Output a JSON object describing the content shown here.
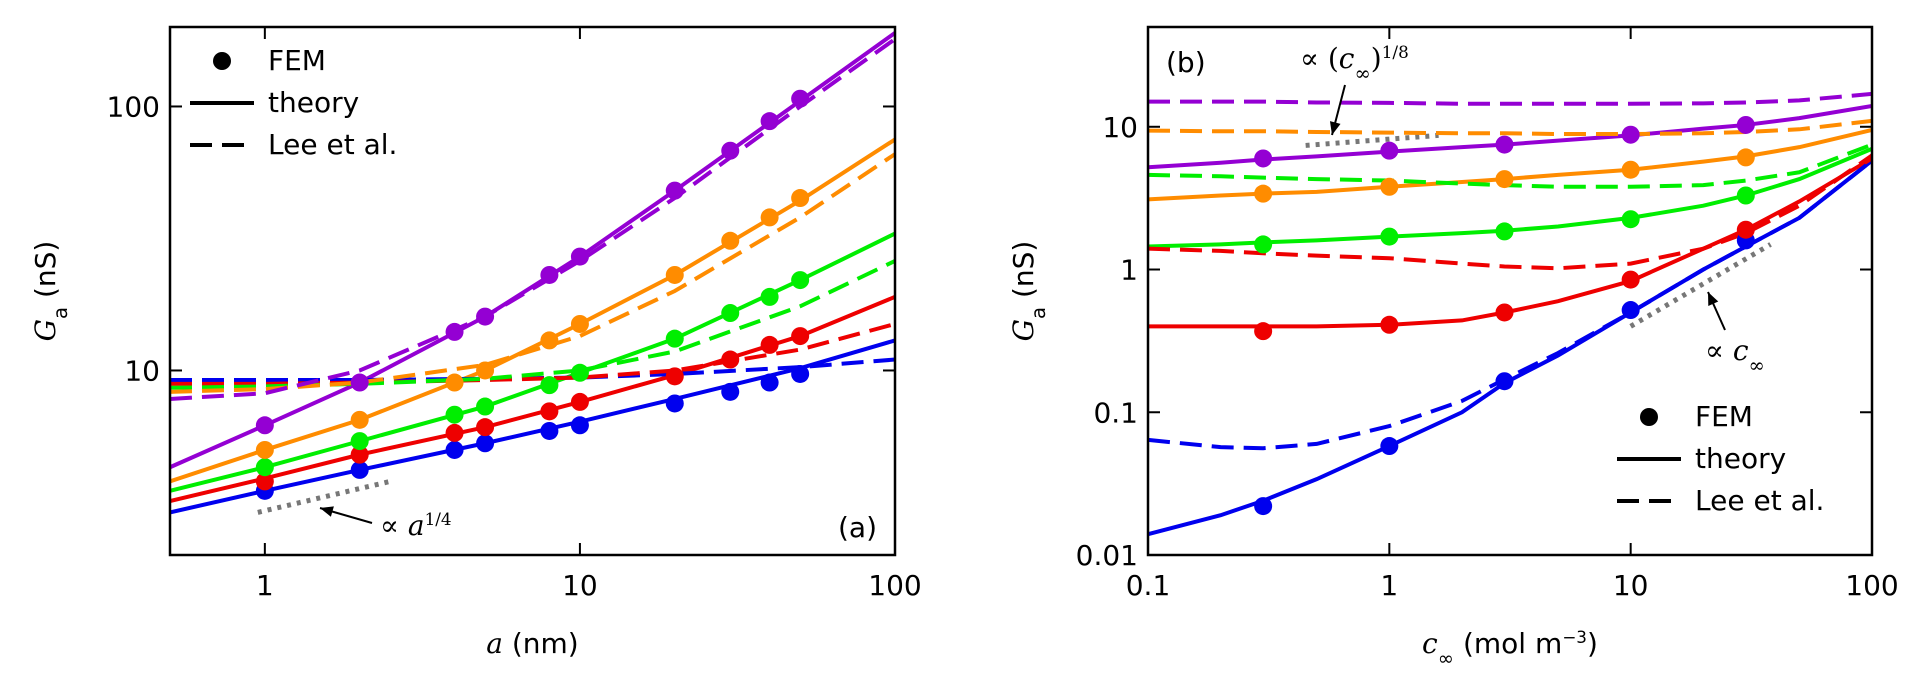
{
  "chart_data": [
    {
      "type": "line",
      "log_x": true,
      "log_y": true,
      "xlabel": [
        {
          "text": "a",
          "style": "italic"
        },
        {
          "text": " (nm)",
          "style": "normal"
        }
      ],
      "ylabel": [
        {
          "text": "G",
          "style": "italic"
        },
        {
          "text": "a",
          "style": "sub"
        },
        {
          "text": " (nS)",
          "style": "normal"
        }
      ],
      "xlim": [
        0.5,
        100
      ],
      "xticks": [
        1,
        10,
        100
      ],
      "ylim": [
        2,
        200
      ],
      "yticks": [
        10,
        100
      ],
      "legend": "upper left",
      "panel_label": "(a)",
      "panel_label_loc": "lower right",
      "series": [
        {
          "name": "FEM",
          "style": "points",
          "x": [
            1,
            2,
            4,
            5,
            8,
            10,
            20,
            30,
            40,
            50
          ],
          "curves": [
            {
              "color": "#0000ee",
              "values": [
                3.5,
                4.2,
                5,
                5.3,
                5.9,
                6.2,
                7.5,
                8.3,
                9,
                9.7
              ]
            },
            {
              "color": "#ee0000",
              "values": [
                3.8,
                4.8,
                5.8,
                6.1,
                7,
                7.6,
                9.5,
                11,
                12.5,
                13.5
              ]
            },
            {
              "color": "#00ee00",
              "values": [
                4.3,
                5.4,
                6.8,
                7.3,
                8.8,
                9.8,
                13.2,
                16.5,
                19,
                22
              ]
            },
            {
              "color": "#ff8c00",
              "values": [
                5,
                6.5,
                9,
                10,
                13,
                15,
                23,
                31,
                38,
                45
              ]
            },
            {
              "color": "#9400d3",
              "values": [
                6.2,
                9,
                14,
                16,
                23,
                27,
                48,
                68,
                88,
                107
              ]
            }
          ]
        },
        {
          "name": "theory",
          "style": "solid",
          "x": [
            0.5,
            1,
            2,
            5,
            10,
            20,
            50,
            100
          ],
          "curves": [
            {
              "color": "#0000ee",
              "values": [
                2.9,
                3.5,
                4.2,
                5.3,
                6.4,
                7.8,
                10.2,
                13
              ]
            },
            {
              "color": "#ee0000",
              "values": [
                3.2,
                3.9,
                4.8,
                6.1,
                7.6,
                9.6,
                13.5,
                19
              ]
            },
            {
              "color": "#00ee00",
              "values": [
                3.5,
                4.3,
                5.4,
                7.3,
                9.8,
                13.2,
                22,
                33
              ]
            },
            {
              "color": "#ff8c00",
              "values": [
                3.8,
                5,
                6.5,
                10,
                15,
                23,
                44,
                75
              ]
            },
            {
              "color": "#9400d3",
              "values": [
                4.3,
                6.2,
                9,
                16,
                27,
                48,
                105,
                190
              ]
            }
          ]
        },
        {
          "name": "Lee et al.",
          "style": "dashed",
          "x": [
            0.5,
            1,
            2,
            5,
            10,
            20,
            50,
            100
          ],
          "curves": [
            {
              "color": "#0000ee",
              "values": [
                9.2,
                9.2,
                9.2,
                9.3,
                9.4,
                9.7,
                10.3,
                11
              ]
            },
            {
              "color": "#ee0000",
              "values": [
                8.9,
                8.9,
                9,
                9.2,
                9.4,
                10,
                12,
                15
              ]
            },
            {
              "color": "#00ee00",
              "values": [
                8.6,
                8.7,
                8.9,
                9.3,
                10,
                11.8,
                17.5,
                26
              ]
            },
            {
              "color": "#ff8c00",
              "values": [
                8.3,
                8.5,
                9,
                10.5,
                13.5,
                20,
                38,
                66
              ]
            },
            {
              "color": "#9400d3",
              "values": [
                7.8,
                8.2,
                10,
                16,
                26,
                45,
                100,
                180
              ]
            }
          ]
        }
      ],
      "guides": [
        {
          "x": [
            0.95,
            2.5
          ],
          "values": [
            2.9,
            3.8
          ]
        }
      ],
      "annotations": [
        {
          "parts": [
            {
              "text": "∝ ",
              "style": "normal"
            },
            {
              "text": "a",
              "style": "italic"
            },
            {
              "text": "1/4",
              "style": "sup"
            }
          ]
        }
      ]
    },
    {
      "type": "line",
      "log_x": true,
      "log_y": true,
      "xlabel": [
        {
          "text": "c",
          "style": "italic"
        },
        {
          "text": "∞",
          "style": "sub"
        },
        {
          "text": " (mol m",
          "style": "normal"
        },
        {
          "text": "−3",
          "style": "sup"
        },
        {
          "text": ")",
          "style": "normal"
        }
      ],
      "ylabel": [
        {
          "text": "G",
          "style": "italic"
        },
        {
          "text": "a",
          "style": "sub"
        },
        {
          "text": " (nS)",
          "style": "normal"
        }
      ],
      "xlim": [
        0.1,
        100
      ],
      "xticks": [
        0.1,
        1,
        10,
        100
      ],
      "ylim": [
        0.01,
        50
      ],
      "yticks": [
        0.01,
        0.1,
        1,
        10
      ],
      "legend": "lower right",
      "panel_label": "(b)",
      "panel_label_loc": "upper left",
      "series": [
        {
          "name": "FEM",
          "style": "points",
          "x": [
            0.3,
            1,
            3,
            10,
            30
          ],
          "curves": [
            {
              "color": "#0000ee",
              "values": [
                0.022,
                0.058,
                0.165,
                0.52,
                1.6
              ]
            },
            {
              "color": "#ee0000",
              "values": [
                0.37,
                0.41,
                0.5,
                0.85,
                1.9
              ]
            },
            {
              "color": "#00ee00",
              "values": [
                1.5,
                1.7,
                1.85,
                2.25,
                3.3
              ]
            },
            {
              "color": "#ff8c00",
              "values": [
                3.4,
                3.8,
                4.3,
                5,
                6.1
              ]
            },
            {
              "color": "#9400d3",
              "values": [
                6,
                6.8,
                7.5,
                8.8,
                10.3
              ]
            }
          ]
        },
        {
          "name": "theory",
          "style": "solid",
          "x": [
            0.1,
            0.2,
            0.3,
            0.5,
            1,
            2,
            3,
            5,
            10,
            20,
            30,
            50,
            100
          ],
          "curves": [
            {
              "color": "#0000ee",
              "values": [
                0.014,
                0.019,
                0.024,
                0.034,
                0.058,
                0.1,
                0.16,
                0.25,
                0.5,
                1,
                1.45,
                2.3,
                5.8
              ]
            },
            {
              "color": "#ee0000",
              "values": [
                0.4,
                0.4,
                0.4,
                0.4,
                0.41,
                0.44,
                0.5,
                0.6,
                0.83,
                1.4,
                1.9,
                3,
                6
              ]
            },
            {
              "color": "#00ee00",
              "values": [
                1.45,
                1.5,
                1.55,
                1.6,
                1.7,
                1.8,
                1.87,
                2,
                2.3,
                2.8,
                3.3,
                4.3,
                7
              ]
            },
            {
              "color": "#ff8c00",
              "values": [
                3.1,
                3.3,
                3.4,
                3.5,
                3.8,
                4.1,
                4.3,
                4.6,
                5,
                5.7,
                6.2,
                7.2,
                9.5
              ]
            },
            {
              "color": "#9400d3",
              "values": [
                5.2,
                5.6,
                5.9,
                6.2,
                6.7,
                7.2,
                7.5,
                8,
                8.7,
                9.7,
                10.3,
                11.5,
                14
              ]
            }
          ]
        },
        {
          "name": "Lee et al.",
          "style": "dashed",
          "x": [
            0.1,
            0.2,
            0.3,
            0.5,
            1,
            2,
            3,
            5,
            10,
            20,
            30,
            50,
            100
          ],
          "curves": [
            {
              "color": "#0000ee",
              "values": [
                0.064,
                0.057,
                0.056,
                0.06,
                0.08,
                0.12,
                0.17,
                0.26,
                0.5,
                1,
                1.45,
                2.3,
                5.8
              ]
            },
            {
              "color": "#ee0000",
              "values": [
                1.4,
                1.35,
                1.3,
                1.25,
                1.2,
                1.1,
                1.05,
                1.02,
                1.1,
                1.4,
                1.8,
                2.8,
                6.3
              ]
            },
            {
              "color": "#00ee00",
              "values": [
                4.6,
                4.5,
                4.4,
                4.3,
                4.2,
                4,
                3.9,
                3.8,
                3.8,
                3.9,
                4.2,
                4.8,
                7.5
              ]
            },
            {
              "color": "#ff8c00",
              "values": [
                9.4,
                9.3,
                9.3,
                9.2,
                9.1,
                9,
                9,
                8.9,
                8.9,
                9,
                9.2,
                9.6,
                11
              ]
            },
            {
              "color": "#9400d3",
              "values": [
                15,
                15,
                15,
                14.8,
                14.7,
                14.5,
                14.5,
                14.5,
                14.5,
                14.6,
                14.8,
                15.3,
                17
              ]
            }
          ]
        }
      ],
      "guides": [
        {
          "x": [
            0.45,
            1.6
          ],
          "values": [
            7.4,
            8.7
          ]
        },
        {
          "x": [
            10,
            38
          ],
          "values": [
            0.4,
            1.5
          ]
        }
      ],
      "annotations": [
        {
          "parts": [
            {
              "text": "∝ (",
              "style": "normal"
            },
            {
              "text": "c",
              "style": "italic"
            },
            {
              "text": "∞",
              "style": "sub"
            },
            {
              "text": ")",
              "style": "normal"
            },
            {
              "text": "1/8",
              "style": "sup"
            }
          ]
        },
        {
          "parts": [
            {
              "text": "∝ ",
              "style": "normal"
            },
            {
              "text": "c",
              "style": "italic"
            },
            {
              "text": "∞",
              "style": "sub"
            }
          ]
        }
      ]
    }
  ]
}
